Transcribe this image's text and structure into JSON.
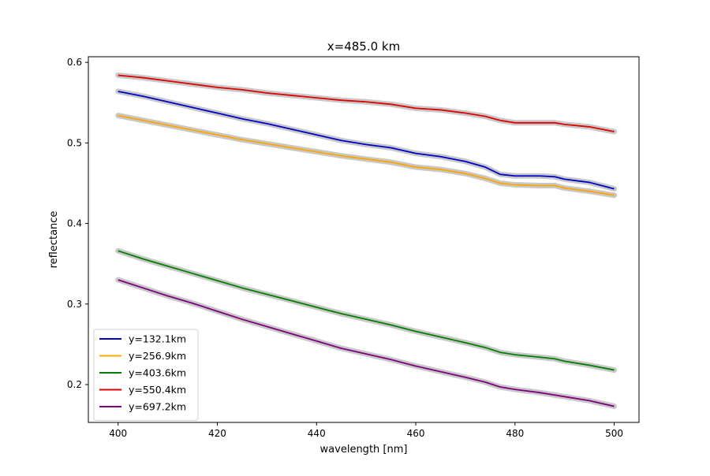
{
  "chart_data": {
    "type": "line",
    "title": "x=485.0 km",
    "xlabel": "wavelength [nm]",
    "ylabel": "reflectance",
    "xlim": [
      394,
      505
    ],
    "ylim": [
      0.153,
      0.607
    ],
    "xticks": [
      400,
      420,
      440,
      460,
      480,
      500
    ],
    "xtick_labels": [
      "400",
      "420",
      "440",
      "460",
      "480",
      "500"
    ],
    "yticks": [
      0.2,
      0.3,
      0.4,
      0.5,
      0.6
    ],
    "ytick_labels": [
      "0.2",
      "0.3",
      "0.4",
      "0.5",
      "0.6"
    ],
    "grid": false,
    "legend_position": "lower-left",
    "band_color": "#c8c8c8",
    "x": [
      400,
      405,
      410,
      415,
      420,
      425,
      430,
      435,
      440,
      445,
      450,
      455,
      460,
      465,
      470,
      474,
      477,
      480,
      485,
      488,
      490,
      495,
      500
    ],
    "series": [
      {
        "name": "y=132.1km",
        "color": "#0000cd",
        "values": [
          0.564,
          0.558,
          0.551,
          0.544,
          0.537,
          0.53,
          0.524,
          0.517,
          0.51,
          0.503,
          0.498,
          0.494,
          0.487,
          0.483,
          0.477,
          0.47,
          0.461,
          0.459,
          0.459,
          0.458,
          0.455,
          0.451,
          0.443
        ]
      },
      {
        "name": "y=256.9km",
        "color": "#ffa500",
        "values": [
          0.534,
          0.528,
          0.522,
          0.516,
          0.51,
          0.504,
          0.499,
          0.494,
          0.489,
          0.484,
          0.48,
          0.476,
          0.47,
          0.467,
          0.462,
          0.456,
          0.45,
          0.448,
          0.447,
          0.447,
          0.444,
          0.44,
          0.435
        ]
      },
      {
        "name": "y=403.6km",
        "color": "#008000",
        "values": [
          0.366,
          0.356,
          0.347,
          0.338,
          0.329,
          0.32,
          0.312,
          0.304,
          0.296,
          0.288,
          0.281,
          0.274,
          0.266,
          0.259,
          0.252,
          0.246,
          0.24,
          0.237,
          0.234,
          0.232,
          0.229,
          0.224,
          0.218
        ]
      },
      {
        "name": "y=550.4km",
        "color": "#e00000",
        "values": [
          0.584,
          0.581,
          0.577,
          0.573,
          0.569,
          0.566,
          0.562,
          0.559,
          0.556,
          0.553,
          0.551,
          0.548,
          0.543,
          0.541,
          0.537,
          0.533,
          0.528,
          0.525,
          0.525,
          0.525,
          0.523,
          0.52,
          0.514
        ]
      },
      {
        "name": "y=697.2km",
        "color": "#800080",
        "values": [
          0.33,
          0.32,
          0.31,
          0.301,
          0.291,
          0.281,
          0.272,
          0.263,
          0.254,
          0.245,
          0.238,
          0.231,
          0.223,
          0.216,
          0.209,
          0.203,
          0.197,
          0.194,
          0.19,
          0.187,
          0.185,
          0.18,
          0.173
        ]
      }
    ]
  }
}
